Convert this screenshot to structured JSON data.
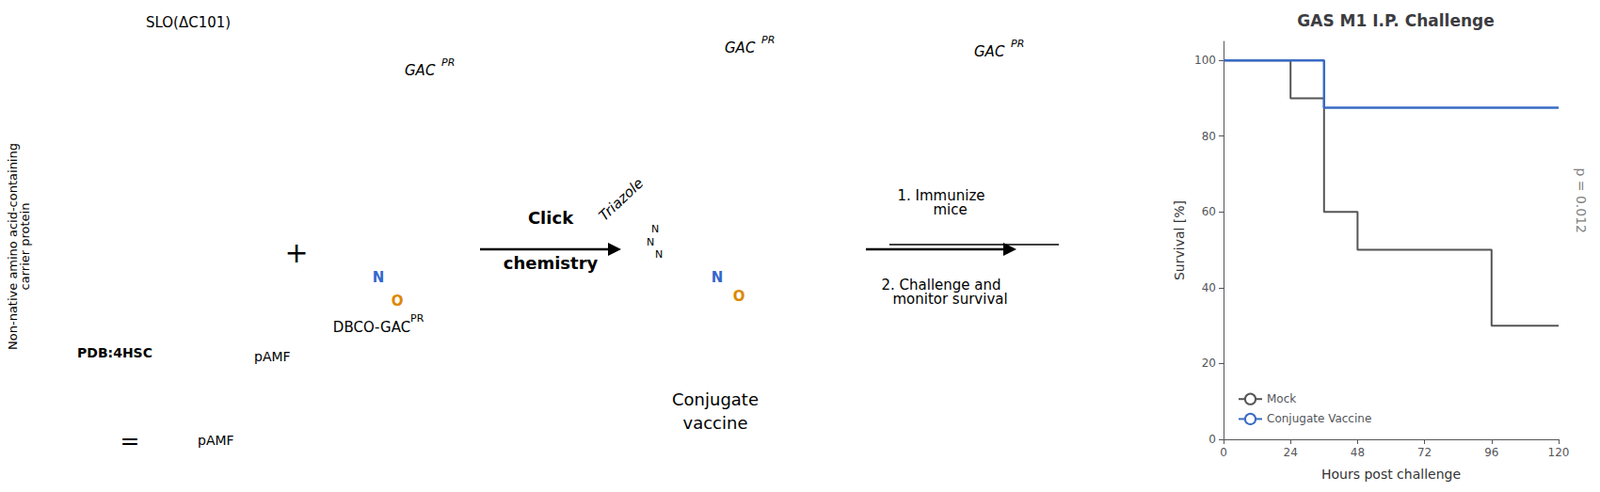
{
  "chart_data": {
    "type": "step",
    "title": "GAS M1 I.P. Challenge",
    "xlabel": "Hours post challenge",
    "ylabel": "Survival [%]",
    "xlim": [
      0,
      120
    ],
    "ylim": [
      0,
      105
    ],
    "xticks": [
      0,
      24,
      48,
      72,
      96,
      120
    ],
    "yticks": [
      0,
      20,
      40,
      60,
      80,
      100
    ],
    "grid": false,
    "legend": "lower left",
    "series": [
      {
        "name": "Mock",
        "color": "#555555",
        "x": [
          0,
          24,
          24,
          36,
          36,
          48,
          48,
          96,
          96,
          120
        ],
        "values": [
          100,
          100,
          90,
          90,
          60,
          60,
          50,
          50,
          30,
          30
        ]
      },
      {
        "name": "Conjugate Vaccine",
        "color": "#3A6BC4",
        "x": [
          0,
          36,
          36,
          120
        ],
        "values": [
          100,
          100,
          87.5,
          87.5
        ]
      }
    ],
    "annotations": [
      "p = 0.012",
      "Non-native amino acid-containing\ncarrier protein",
      "SLO(ΔC101)",
      "PDB:4HSC",
      "pAMF",
      "=",
      "pAMF",
      "+",
      "GAC",
      "PR",
      "N",
      "O",
      "DBCO-GAC",
      "PR",
      "Click",
      "chemistry",
      "GAC",
      "PR",
      "N",
      "N",
      "N",
      "Triazole",
      "N",
      "O",
      "Conjugate",
      "vaccine",
      "1. Immunize\n    mice",
      "2. Challenge and\n    monitor survival",
      "GAC",
      "PR"
    ]
  }
}
